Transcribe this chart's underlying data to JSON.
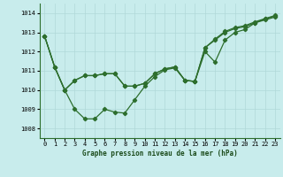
{
  "title": "Graphe pression niveau de la mer (hPa)",
  "background_color": "#c8ecec",
  "grid_color": "#b0d8d8",
  "line_color": "#2d6e2d",
  "ylim": [
    1007.5,
    1014.5
  ],
  "xlim": [
    -0.5,
    23.5
  ],
  "yticks": [
    1008,
    1009,
    1010,
    1011,
    1012,
    1013,
    1014
  ],
  "xticks": [
    0,
    1,
    2,
    3,
    4,
    5,
    6,
    7,
    8,
    9,
    10,
    11,
    12,
    13,
    14,
    15,
    16,
    17,
    18,
    19,
    20,
    21,
    22,
    23
  ],
  "line1": [
    1012.8,
    1011.2,
    1010.0,
    1009.0,
    1008.5,
    1008.5,
    1009.0,
    1008.85,
    1008.8,
    1009.5,
    1010.2,
    1010.7,
    1011.05,
    1011.15,
    1010.5,
    1010.45,
    1012.0,
    1011.45,
    1012.6,
    1013.0,
    1013.15,
    1013.5,
    1013.65,
    1013.8
  ],
  "line2": [
    1012.8,
    1011.2,
    1010.0,
    1010.5,
    1010.75,
    1010.75,
    1010.85,
    1010.85,
    1010.2,
    1010.2,
    1010.35,
    1010.85,
    1011.1,
    1011.2,
    1010.5,
    1010.45,
    1012.2,
    1012.6,
    1013.0,
    1013.2,
    1013.3,
    1013.5,
    1013.7,
    1013.85
  ],
  "line3": [
    1012.8,
    1011.2,
    1010.0,
    1010.5,
    1010.75,
    1010.75,
    1010.85,
    1010.85,
    1010.2,
    1010.2,
    1010.35,
    1010.85,
    1011.1,
    1011.2,
    1010.5,
    1010.45,
    1012.2,
    1012.65,
    1013.05,
    1013.25,
    1013.35,
    1013.55,
    1013.72,
    1013.88
  ],
  "marker_size": 2.2,
  "linewidth": 0.9,
  "tick_fontsize": 5.0,
  "xlabel_fontsize": 5.5
}
